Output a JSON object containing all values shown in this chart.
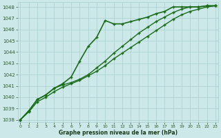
{
  "line1": {
    "x": [
      0,
      1,
      2,
      3,
      4,
      5,
      6,
      7,
      8,
      9,
      10,
      11,
      12,
      13,
      14,
      15,
      16,
      17,
      18,
      19,
      20,
      21,
      22,
      23
    ],
    "y": [
      1038.0,
      1038.8,
      1039.8,
      1040.2,
      1040.8,
      1041.2,
      1041.8,
      1043.2,
      1044.5,
      1045.3,
      1046.8,
      1046.5,
      1046.5,
      1046.7,
      1046.9,
      1047.1,
      1047.4,
      1047.6,
      1048.0,
      1048.0,
      1048.0,
      1048.0,
      1048.1,
      1048.1
    ],
    "color": "#1a6b1a",
    "lw": 1.2,
    "marker": "+"
  },
  "line2": {
    "x": [
      0,
      1,
      2,
      3,
      4,
      5,
      6,
      7,
      8,
      9,
      10,
      11,
      12,
      13,
      14,
      15,
      16,
      17,
      18,
      19,
      20,
      21,
      22,
      23
    ],
    "y": [
      1038.0,
      1038.8,
      1039.8,
      1040.2,
      1040.8,
      1041.1,
      1041.3,
      1041.6,
      1042.0,
      1042.6,
      1043.2,
      1043.9,
      1044.5,
      1045.1,
      1045.7,
      1046.2,
      1046.7,
      1047.1,
      1047.5,
      1047.8,
      1048.0,
      1048.0,
      1048.1,
      1048.1
    ],
    "color": "#1a6b1a",
    "lw": 1.0,
    "marker": "+"
  },
  "line3": {
    "x": [
      0,
      1,
      2,
      3,
      4,
      5,
      6,
      7,
      8,
      9,
      10,
      11,
      12,
      13,
      14,
      15,
      16,
      17,
      18,
      19,
      20,
      21,
      22,
      23
    ],
    "y": [
      1038.0,
      1038.7,
      1039.6,
      1040.0,
      1040.5,
      1040.9,
      1041.2,
      1041.5,
      1041.9,
      1042.3,
      1042.8,
      1043.4,
      1043.9,
      1044.4,
      1044.9,
      1045.4,
      1045.9,
      1046.4,
      1046.9,
      1047.3,
      1047.6,
      1047.8,
      1048.0,
      1048.1
    ],
    "color": "#1a6b1a",
    "lw": 1.0,
    "marker": "+"
  },
  "background_color": "#cce8e8",
  "grid_color": "#aacece",
  "xlabel": "Graphe pression niveau de la mer (hPa)",
  "ylim": [
    1037.8,
    1048.4
  ],
  "xlim": [
    -0.3,
    23.3
  ],
  "yticks": [
    1038,
    1039,
    1040,
    1041,
    1042,
    1043,
    1044,
    1045,
    1046,
    1047,
    1048
  ],
  "xticks": [
    0,
    1,
    2,
    3,
    4,
    5,
    6,
    7,
    8,
    9,
    10,
    11,
    12,
    13,
    14,
    15,
    16,
    17,
    18,
    19,
    20,
    21,
    22,
    23
  ],
  "tick_color": "#2d5a2d",
  "label_color": "#1a3a1a"
}
